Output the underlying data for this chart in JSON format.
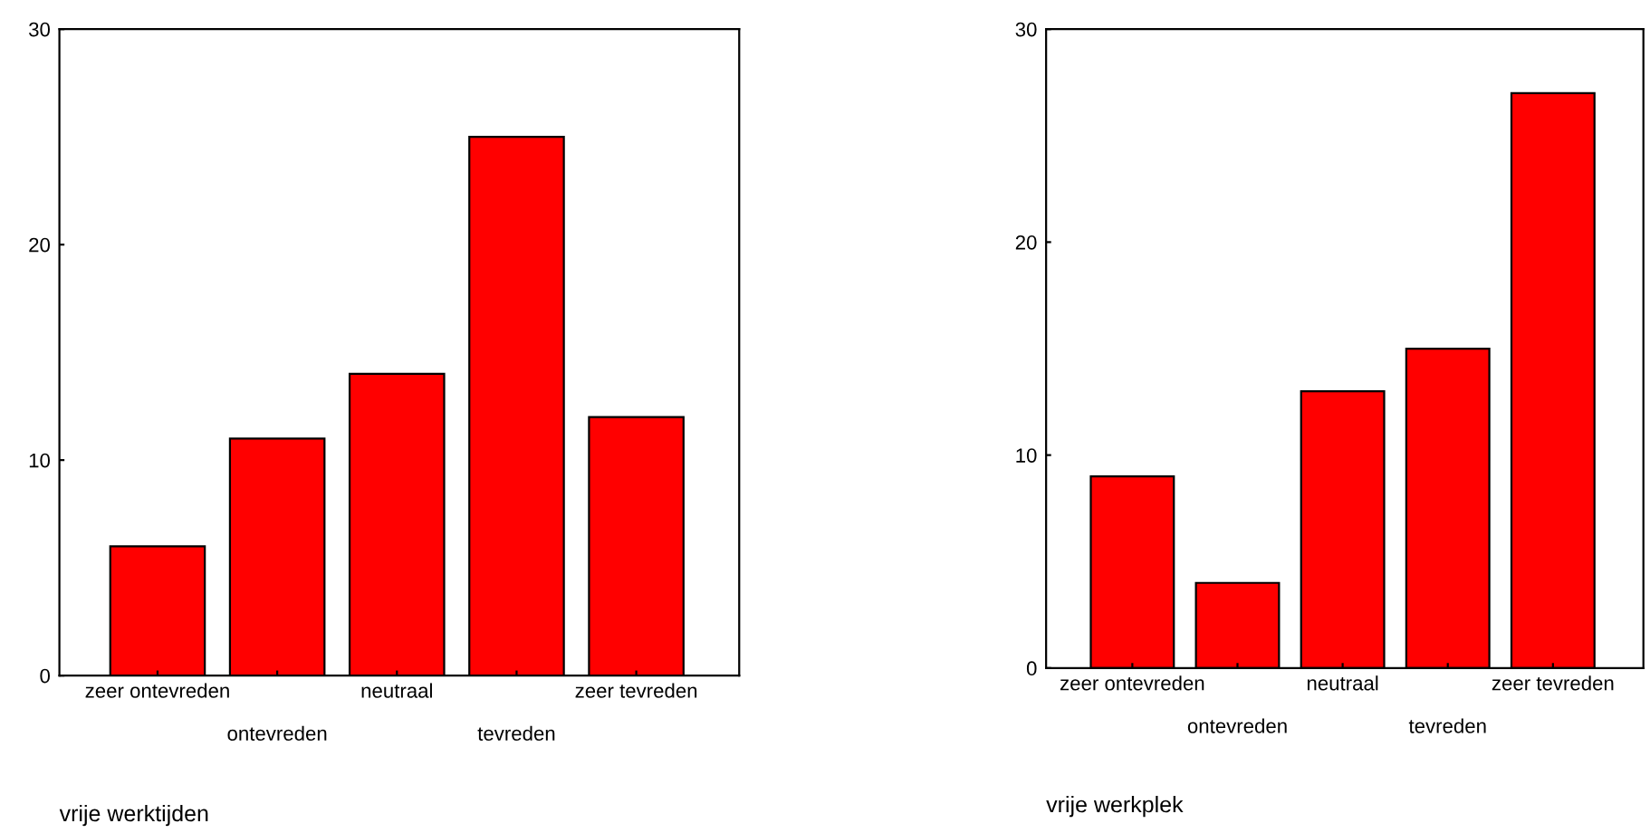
{
  "chart_data": [
    {
      "type": "bar",
      "xlabel": "vrije werktijden",
      "categories": [
        "zeer ontevreden",
        "ontevreden",
        "neutraal",
        "tevreden",
        "zeer tevreden"
      ],
      "values": [
        6,
        11,
        14,
        25,
        12
      ],
      "color": "#ff0000",
      "ylim": [
        0,
        30
      ],
      "yticks": [
        0,
        10,
        20,
        30
      ],
      "grid": false,
      "legend": false
    },
    {
      "type": "bar",
      "xlabel": "vrije werkplek",
      "categories": [
        "zeer ontevreden",
        "ontevreden",
        "neutraal",
        "tevreden",
        "zeer tevreden"
      ],
      "values": [
        9,
        4,
        13,
        15,
        27
      ],
      "color": "#ff0000",
      "ylim": [
        0,
        30
      ],
      "yticks": [
        0,
        10,
        20,
        30
      ],
      "grid": false,
      "legend": false
    }
  ]
}
